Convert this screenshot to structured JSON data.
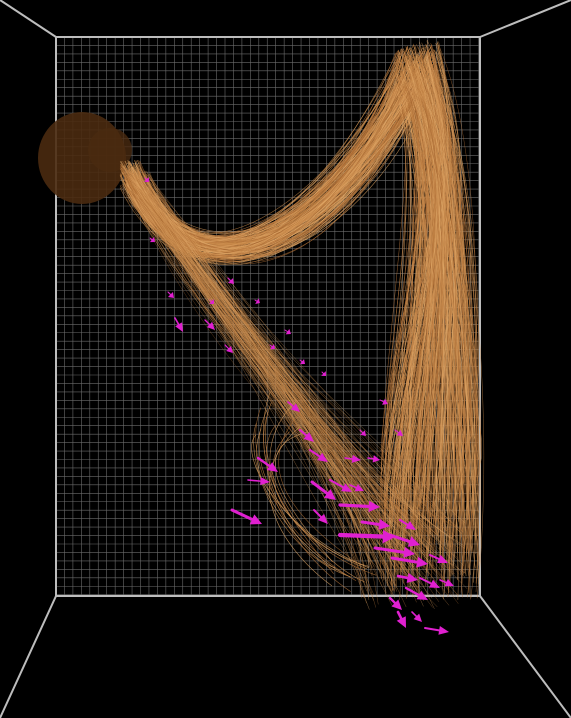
{
  "scene": {
    "background_color": "#000000",
    "box_edge_color": "#bdbdbd",
    "grid_color": "#6b6b6b",
    "hair_colors": [
      "#c8894a",
      "#d79b5c",
      "#b8773d",
      "#e0a868",
      "#a86a33"
    ],
    "head_color": "#4a2a10",
    "arrow_color": "#e020d0",
    "grid_visible": true
  }
}
